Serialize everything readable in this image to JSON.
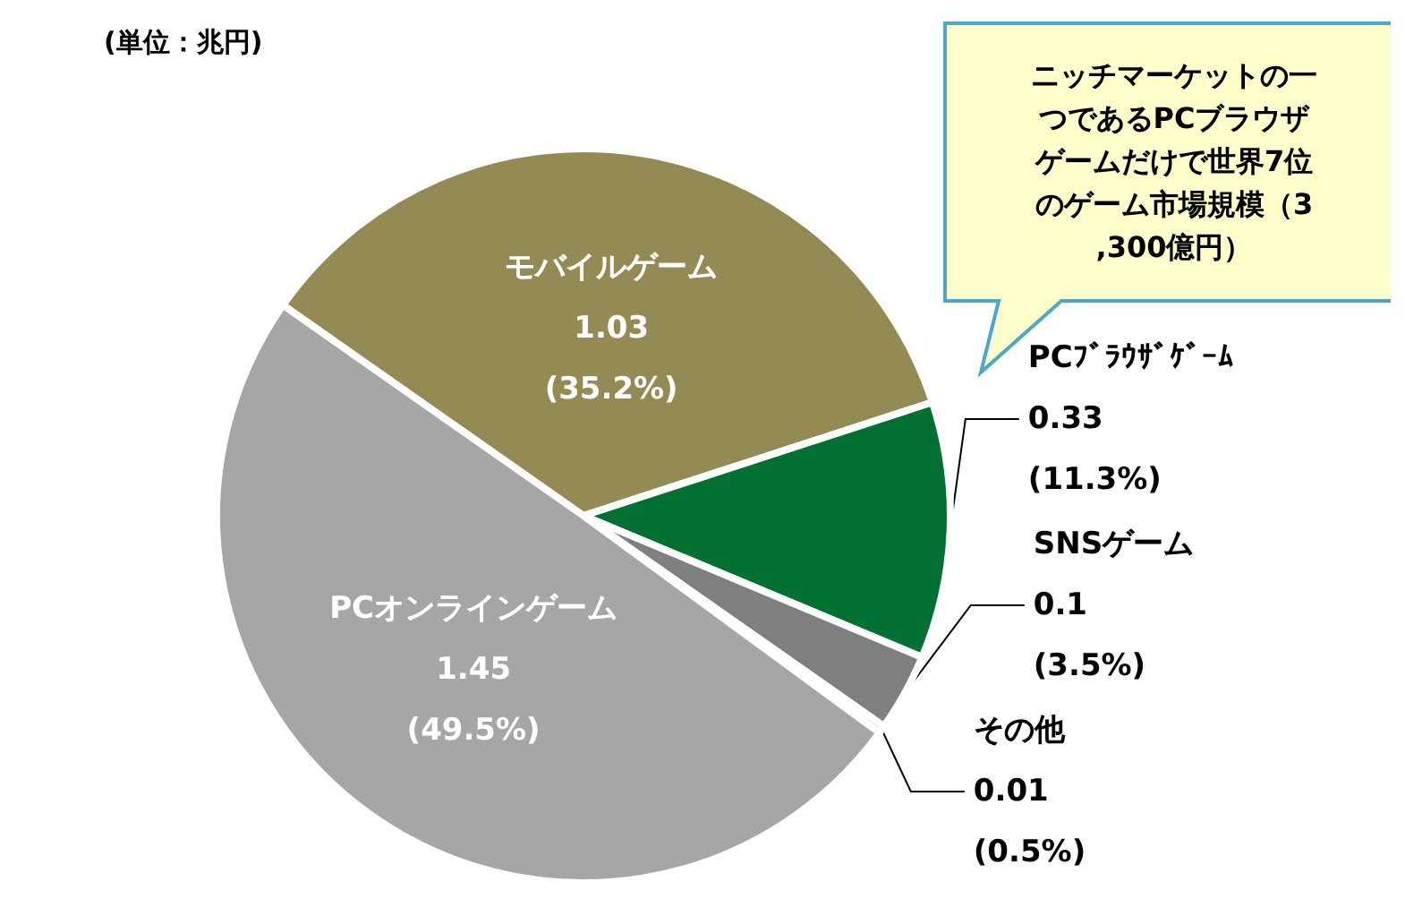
{
  "chart_data": {
    "type": "pie",
    "categories": [
      "モバイルゲーム",
      "PCﾌﾞﾗｳｻﾞｹﾞｰﾑ",
      "SNSゲーム",
      "その他",
      "PCオンラインゲーム"
    ],
    "values": [
      1.03,
      0.33,
      0.1,
      0.01,
      1.45
    ],
    "colors": [
      "#948a54",
      "#007033",
      "#7f7f7f",
      "#c4bd97",
      "#a6a6a6"
    ],
    "value_labels": [
      "1.03\n(35.2%)",
      "0.33\n(11.3%)",
      "0.1\n(3.5%)",
      "0.01\n(0.5%)",
      "1.45\n(49.5%)"
    ],
    "annotations": [
      "(単位：兆円)",
      "ニッチマーケットの一つであるPCブラウザゲームだけで世界7位のゲーム市場規模（3,300億円）"
    ],
    "legend": false
  }
}
